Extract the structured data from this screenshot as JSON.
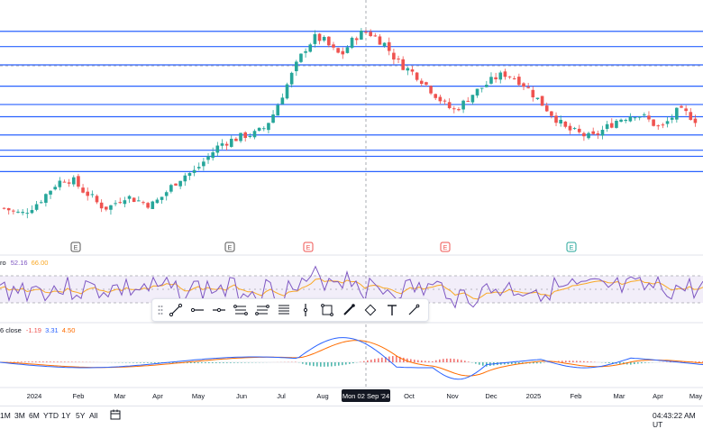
{
  "colors": {
    "up": "#26a69a",
    "down": "#ef5350",
    "hline": "#2962ff",
    "rsi": "#7e57c2",
    "rsi_ma": "#f9a825",
    "macd": "#2962ff",
    "signal": "#ff6d00",
    "earnings_neutral": "#555555",
    "earnings_bad": "#ef5350",
    "earnings_good": "#26a69a"
  },
  "chart_data": {
    "type": "candlestick",
    "price_start": 14,
    "ohlc_trend": [
      14,
      13.5,
      13,
      14,
      15,
      16.5,
      18,
      18.8,
      18.5,
      17,
      16,
      14.5,
      14,
      15,
      16,
      15.5,
      15,
      14.5,
      15.5,
      17,
      18.5,
      19.5,
      20,
      21.5,
      23,
      24.5,
      25,
      25.5,
      26,
      26.2,
      27,
      29,
      32,
      35,
      38,
      40.5,
      42,
      41.5,
      40,
      39,
      41,
      42.5,
      43,
      42,
      41,
      39,
      37.5,
      36.5,
      35.5,
      34,
      32.5,
      31,
      30,
      31,
      32.5,
      33.5,
      34.5,
      35.5,
      36,
      35.5,
      34.5,
      33,
      31.5,
      30,
      28.5,
      27,
      26.5,
      26,
      25.5,
      26.5,
      27.5,
      28.5,
      29,
      29.5,
      29,
      28,
      27,
      28.5,
      30,
      29.5,
      28.5
    ],
    "horizontal_levels": [
      43,
      40.5,
      37.5,
      34,
      31,
      29,
      26,
      23.5,
      22.5,
      20
    ],
    "rsi": {
      "value": "52.16",
      "ma": "66.00"
    },
    "macd": {
      "hist": "-1.19",
      "macd": "3.31",
      "signal": "4.50"
    }
  },
  "earnings_markers": [
    {
      "label": "E",
      "kind": "neutral"
    },
    {
      "label": "E",
      "kind": "neutral"
    },
    {
      "label": "E",
      "kind": "bad"
    },
    {
      "label": "E",
      "kind": "bad"
    },
    {
      "label": "E",
      "kind": "good"
    }
  ],
  "rsi_legend": {
    "name_frag": "ro",
    "value": "52.16",
    "ma": "66.00"
  },
  "macd_legend": {
    "name_frag": "6 close",
    "hist": "-1.19",
    "macd": "3.31",
    "signal": "4.50"
  },
  "time_axis": {
    "labels": [
      "2024",
      "Feb",
      "Mar",
      "Apr",
      "May",
      "Jun",
      "Jul",
      "Aug",
      "Oct",
      "Nov",
      "Dec",
      "2025",
      "Feb",
      "Mar",
      "Apr",
      "May"
    ],
    "crosshair_label": "Mon 02 Sep '24"
  },
  "toolbar": {
    "tools": [
      "trend-line-icon",
      "horizontal-ray-icon",
      "arrow-marker-icon",
      "date-range-icon",
      "price-range-icon",
      "date-price-range-icon",
      "vertical-line-icon",
      "rectangle-icon",
      "brush-icon",
      "rotated-rectangle-icon",
      "text-icon",
      "pencil-icon"
    ]
  },
  "bottom_bar": {
    "ranges": [
      "1M",
      "3M",
      "6M",
      "YTD",
      "1Y",
      "5Y",
      "All"
    ],
    "clock": "04:43:22 AM UT"
  }
}
